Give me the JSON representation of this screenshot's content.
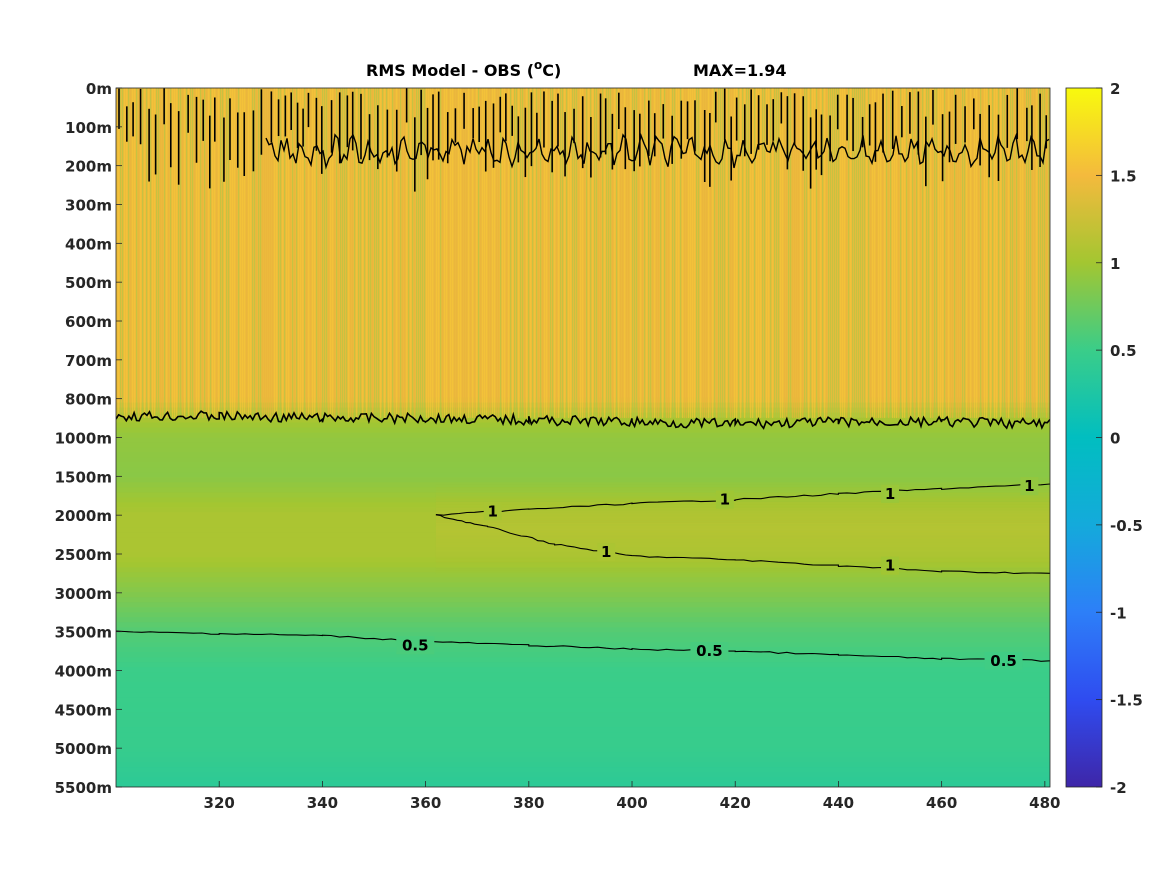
{
  "chart_data": {
    "type": "heatmap",
    "title": {
      "prefix": "RMS Model - OBS (",
      "superscript": "o",
      "suffix": "C)",
      "max_label": "MAX=1.94"
    },
    "xlabel": "",
    "ylabel": "",
    "x_range": [
      300,
      481
    ],
    "x_ticks": [
      320,
      340,
      360,
      380,
      400,
      420,
      440,
      460,
      480
    ],
    "y_tick_labels": [
      "0m",
      "100m",
      "200m",
      "300m",
      "400m",
      "500m",
      "600m",
      "700m",
      "800m",
      "1000m",
      "1500m",
      "2000m",
      "2500m",
      "3000m",
      "3500m",
      "4000m",
      "4500m",
      "5000m",
      "5500m"
    ],
    "colorbar": {
      "range": [
        -2,
        2
      ],
      "ticks": [
        "2",
        "1.5",
        "1",
        "0.5",
        "0",
        "-0.5",
        "-1",
        "-1.5",
        "-2"
      ],
      "colormap": "parula"
    },
    "field_description_rows": [
      {
        "depth_index": 0,
        "value": 1.45
      },
      {
        "depth_index": 8,
        "value": 1.45
      },
      {
        "depth_index": 8.6,
        "value": 1.0
      },
      {
        "depth_index": 9,
        "value": 0.92
      },
      {
        "depth_index": 10,
        "value": 0.88
      },
      {
        "depth_index": 11,
        "value": 1.05
      },
      {
        "depth_index": 12,
        "value": 1.05
      },
      {
        "depth_index": 13,
        "value": 0.85
      },
      {
        "depth_index": 14,
        "value": 0.62
      },
      {
        "depth_index": 15,
        "value": 0.5
      },
      {
        "depth_index": 17,
        "value": 0.47
      },
      {
        "depth_index": 18,
        "value": 0.38
      }
    ],
    "contours": [
      {
        "level": "1",
        "path_x": [
          362,
          380,
          400,
          420,
          440,
          460,
          481
        ],
        "path_y_index": [
          11.0,
          10.85,
          10.7,
          10.6,
          10.45,
          10.32,
          10.2
        ]
      },
      {
        "level": "1",
        "path_x": [
          362,
          372,
          385,
          400,
          420,
          440,
          460,
          481
        ],
        "path_y_index": [
          11.0,
          11.3,
          11.75,
          12.05,
          12.15,
          12.3,
          12.45,
          12.5
        ]
      },
      {
        "level": "0.5",
        "path_x": [
          300,
          320,
          340,
          360,
          380,
          400,
          420,
          440,
          460,
          481
        ],
        "path_y_index": [
          14.0,
          14.05,
          14.1,
          14.25,
          14.35,
          14.45,
          14.5,
          14.6,
          14.7,
          14.75
        ]
      },
      {
        "level": "1",
        "path_x": [
          300,
          320,
          340,
          360,
          380,
          400,
          420,
          440,
          460,
          481
        ],
        "path_y_index": [
          8.45,
          8.45,
          8.5,
          8.5,
          8.55,
          8.6,
          8.65,
          8.6,
          8.6,
          8.65
        ]
      }
    ],
    "contour_labels": [
      {
        "text": "1",
        "x": 373,
        "y_index": 10.9
      },
      {
        "text": "1",
        "x": 418,
        "y_index": 10.6
      },
      {
        "text": "1",
        "x": 450,
        "y_index": 10.45
      },
      {
        "text": "1",
        "x": 477,
        "y_index": 10.25
      },
      {
        "text": "1",
        "x": 395,
        "y_index": 11.95
      },
      {
        "text": "1",
        "x": 450,
        "y_index": 12.3
      },
      {
        "text": "0.5",
        "x": 358,
        "y_index": 14.35
      },
      {
        "text": "0.5",
        "x": 415,
        "y_index": 14.5
      },
      {
        "text": "0.5",
        "x": 472,
        "y_index": 14.75
      }
    ]
  }
}
